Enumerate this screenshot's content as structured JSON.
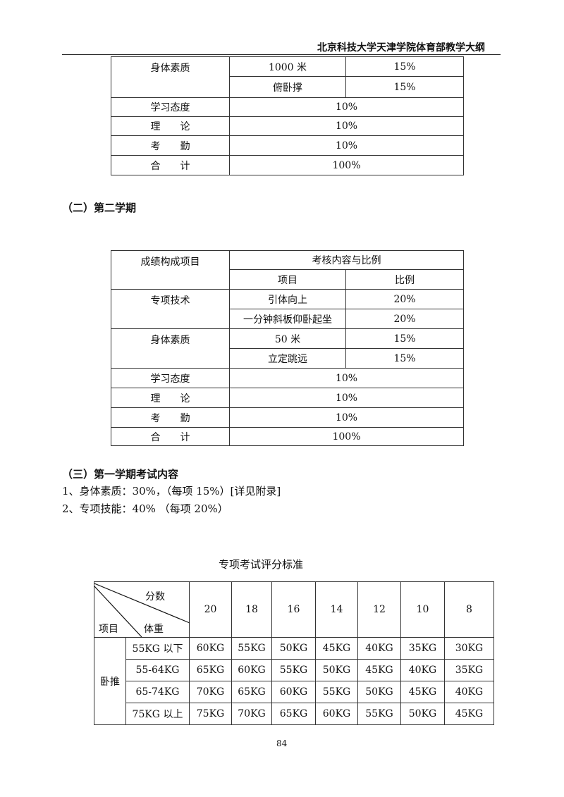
{
  "header": {
    "title": "北京科技大学天津学院体育部教学大纲"
  },
  "table1": {
    "rows": [
      {
        "group": "身体素质",
        "item": "1000 米",
        "ratio": "15%"
      },
      {
        "item": "俯卧撑",
        "ratio": "15%"
      },
      {
        "group": "学习态度",
        "ratio": "10%"
      },
      {
        "group": "理　　论",
        "ratio": "10%"
      },
      {
        "group": "考　　勤",
        "ratio": "10%"
      },
      {
        "group": "合　　计",
        "ratio": "100%"
      }
    ]
  },
  "section2": {
    "heading": "（二）第二学期"
  },
  "table2": {
    "h_group": "成绩构成项目",
    "h_content": "考核内容与比例",
    "h_item": "项目",
    "h_ratio": "比例",
    "rows": [
      {
        "group": "专项技术",
        "item": "引体向上",
        "ratio": "20%"
      },
      {
        "item": "一分钟斜板仰卧起坐",
        "ratio": "20%"
      },
      {
        "group": "身体素质",
        "item": "50 米",
        "ratio": "15%"
      },
      {
        "item": "立定跳远",
        "ratio": "15%"
      },
      {
        "group": "学习态度",
        "ratio": "10%"
      },
      {
        "group": "理　　论",
        "ratio": "10%"
      },
      {
        "group": "考　　勤",
        "ratio": "10%"
      },
      {
        "group": "合　　计",
        "ratio": "100%"
      }
    ]
  },
  "section3": {
    "heading": "（三）第一学期考试内容",
    "line1": "1、身体素质：30%，（每项 15%）[详见附录]",
    "line2": "2、专项技能：40%  （每项 20%）"
  },
  "table3": {
    "caption": "专项考试评分标准",
    "corner_score": "分数",
    "corner_item": "项目",
    "corner_weight": "体重",
    "scores": [
      "20",
      "18",
      "16",
      "14",
      "12",
      "10",
      "8"
    ],
    "event": "卧推",
    "rows": [
      {
        "weight": "55KG 以下",
        "values": [
          "60KG",
          "55KG",
          "50KG",
          "45KG",
          "40KG",
          "35KG",
          "30KG"
        ]
      },
      {
        "weight": "55-64KG",
        "values": [
          "65KG",
          "60KG",
          "55KG",
          "50KG",
          "45KG",
          "40KG",
          "35KG"
        ]
      },
      {
        "weight": "65-74KG",
        "values": [
          "70KG",
          "65KG",
          "60KG",
          "55KG",
          "50KG",
          "45KG",
          "40KG"
        ]
      },
      {
        "weight": "75KG 以上",
        "values": [
          "75KG",
          "70KG",
          "65KG",
          "60KG",
          "55KG",
          "50KG",
          "45KG"
        ]
      }
    ]
  },
  "page_number": "84"
}
